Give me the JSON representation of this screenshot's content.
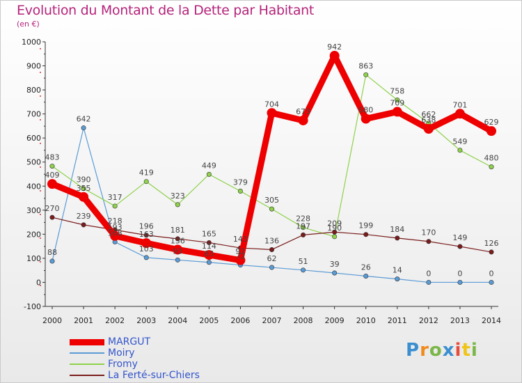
{
  "title": "Evolution du Montant de la Dette par Habitant",
  "subtitle": "(en €)",
  "logo_text": "Proxiti",
  "chart_data": {
    "type": "line",
    "title": "Evolution du Montant de la Dette par Habitant",
    "subtitle": "(en €)",
    "x": [
      2000,
      2001,
      2002,
      2003,
      2004,
      2005,
      2006,
      2007,
      2008,
      2009,
      2010,
      2011,
      2012,
      2013,
      2014
    ],
    "x_tick_labels": [
      "2000",
      "2001",
      "2002",
      "2003",
      "2004",
      "2005",
      "2006",
      "2007",
      "2008",
      "2009",
      "2010",
      "2011",
      "2012",
      "2013",
      "2014"
    ],
    "ylim": [
      -100,
      1000
    ],
    "y_ticks": [
      -100,
      0,
      100,
      200,
      300,
      400,
      500,
      600,
      700,
      800,
      900,
      1000
    ],
    "y_tick_labels": [
      "-100",
      "0",
      "100",
      "200",
      "300",
      "400",
      "500",
      "600",
      "700",
      "800",
      "900",
      "1000"
    ],
    "grid": false,
    "legend_position": "bottom-left",
    "series": [
      {
        "name": "MARGUT",
        "color": "#ee0000",
        "values": [
          409,
          355,
          193,
          163,
          136,
          114,
          92,
          704,
          673,
          942,
          680,
          709,
          638,
          701,
          629
        ],
        "labels": [
          "409",
          "355",
          "193",
          "163",
          "136",
          "114",
          "92",
          "704",
          "673",
          "942",
          "680",
          "709",
          "638",
          "701",
          "629"
        ]
      },
      {
        "name": "Moiry",
        "color": "#5b9bd5",
        "values": [
          88,
          642,
          168,
          103,
          93,
          83,
          72,
          62,
          51,
          39,
          26,
          14,
          0,
          0,
          0
        ],
        "labels": [
          "88",
          "642",
          "168",
          "103",
          "93",
          "83",
          "72",
          "62",
          "51",
          "39",
          "26",
          "14",
          "0",
          "0",
          "0"
        ]
      },
      {
        "name": "Fromy",
        "color": "#8ed14b",
        "values": [
          483,
          390,
          317,
          419,
          323,
          449,
          379,
          305,
          228,
          190,
          863,
          758,
          662,
          549,
          480
        ],
        "labels": [
          "483",
          "390",
          "317",
          "419",
          "323",
          "449",
          "379",
          "305",
          "228",
          "190",
          "863",
          "758",
          "662",
          "549",
          "480"
        ]
      },
      {
        "name": "La Ferté-sur-Chiers",
        "color": "#7a1c1c",
        "values": [
          270,
          239,
          218,
          196,
          181,
          165,
          143,
          136,
          197,
          209,
          199,
          184,
          170,
          149,
          126
        ],
        "labels": [
          "270",
          "239",
          "218",
          "196",
          "181",
          "165",
          "143",
          "136",
          "197",
          "209",
          "199",
          "184",
          "170",
          "149",
          "126"
        ]
      }
    ]
  }
}
